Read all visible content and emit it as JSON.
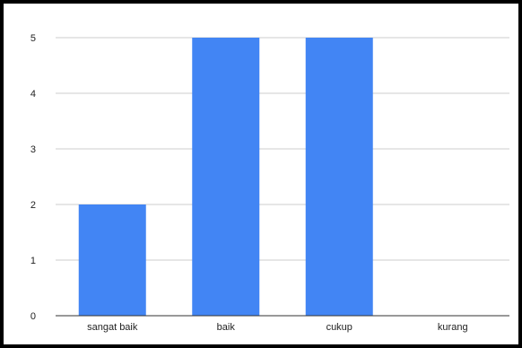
{
  "chart_data": {
    "type": "bar",
    "categories": [
      "sangat baik",
      "baik",
      "cukup",
      "kurang"
    ],
    "values": [
      2,
      5,
      5,
      0
    ],
    "y_ticks": [
      "0",
      "1",
      "2",
      "3",
      "4",
      "5"
    ],
    "ylim": [
      0,
      5
    ],
    "grid": true,
    "legend": "none",
    "bar_color": "#4285F4",
    "grid_color": "#CCCCCC",
    "axis_color": "#333333"
  }
}
